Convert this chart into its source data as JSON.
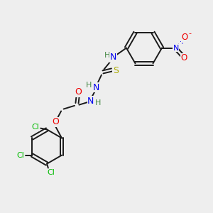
{
  "bg_color": "#eeeeee",
  "bond_color": "#1a1a1a",
  "colors": {
    "N": "#0000ee",
    "O": "#ee0000",
    "S": "#aaaa00",
    "Cl": "#00bb00",
    "H": "#448844",
    "C": "#1a1a1a"
  },
  "figsize": [
    3.0,
    3.0
  ],
  "dpi": 100
}
